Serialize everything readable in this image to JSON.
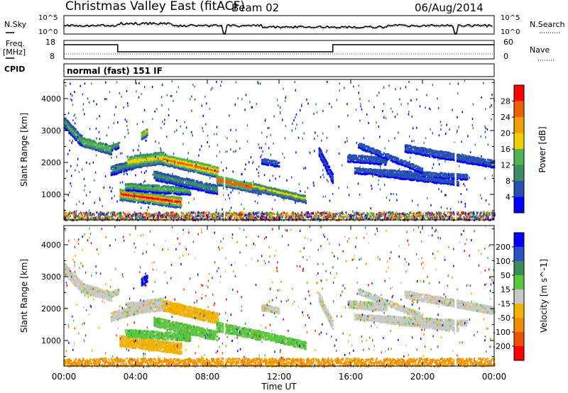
{
  "header": {
    "station": "Christmas Valley East (fitACF)",
    "beam": "Beam 02",
    "date": "06/Aug/2014"
  },
  "noise_panel": {
    "left_label": "N.Sky",
    "right_label": "N.Search",
    "left_ticks": [
      "10^5",
      "10^0"
    ],
    "right_ticks": [
      "10^5",
      "10^0"
    ]
  },
  "freq_panel": {
    "left_label_1": "Freq.",
    "left_label_2": "[MHz]",
    "right_label": "Nave",
    "left_ticks": [
      "18",
      "8"
    ],
    "right_ticks": [
      "60",
      "0"
    ]
  },
  "cpid_panel": {
    "label": "CPID",
    "text": "normal (fast) 151 IF"
  },
  "colors": {
    "power_scale": [
      "#0000ff",
      "#2850b4",
      "#3c8c64",
      "#50b450",
      "#f0d000",
      "#f0a000",
      "#f06000",
      "#ff0000"
    ],
    "velocity_scale": [
      "#0000ff",
      "#2850c8",
      "#3c8c5a",
      "#5ac83c",
      "#c8c8c8",
      "#f0b400",
      "#f08c00",
      "#f05000",
      "#ff0000"
    ]
  },
  "chart_data": [
    {
      "type": "heatmap",
      "name": "power",
      "ylabel": "Slant Range [km]",
      "ylim": [
        200,
        4600
      ],
      "xlim": [
        0,
        24
      ],
      "y_ticks": [
        1000,
        2000,
        3000,
        4000
      ],
      "colorbar": {
        "label": "Power [dB]",
        "tick_values": [
          4,
          8,
          12,
          16,
          20,
          24,
          28
        ],
        "range": [
          0,
          32
        ]
      },
      "x": [
        0.5,
        1.0,
        1.5,
        2.0,
        2.5,
        3.0,
        3.5,
        4.0,
        4.5,
        5.0,
        5.5,
        6.0,
        6.5,
        7.0,
        7.5,
        8.0,
        8.5,
        9.0,
        9.5,
        10.0,
        10.5,
        11.0,
        11.5,
        12.0,
        12.5,
        13.0,
        13.5,
        14.0
      ],
      "echo_bands": [
        {
          "start_range": [
            3200,
            2900,
            2600,
            2500,
            2500,
            2450
          ],
          "max_power": 16,
          "times": [
            0.1,
            0.6,
            1.1,
            1.6,
            2.1,
            2.6
          ]
        },
        {
          "start_range": [
            900,
            850,
            800,
            800,
            850,
            950,
            1050,
            1100
          ],
          "max_power": 30,
          "times": [
            3.0,
            3.5,
            4.0,
            4.5,
            5.0,
            5.5,
            6.0,
            6.5
          ]
        },
        {
          "start_range": [
            1500,
            1550,
            1600,
            1400,
            1300,
            1200,
            1150,
            1100
          ],
          "max_power": 26,
          "times": [
            8.5,
            9.0,
            9.5,
            10.0,
            10.5,
            11.0,
            11.5,
            12.0
          ]
        }
      ]
    },
    {
      "type": "heatmap",
      "name": "velocity",
      "ylabel": "Slant Range [km]",
      "ylim": [
        200,
        4600
      ],
      "xlim": [
        0,
        24
      ],
      "y_ticks": [
        1000,
        2000,
        3000,
        4000
      ],
      "colorbar": {
        "label": "Velocity [m s^-1]",
        "tick_values": [
          200,
          100,
          50,
          15,
          -15,
          -50,
          -100,
          -200
        ]
      }
    }
  ],
  "axes": {
    "x_ticks": [
      "00:00",
      "04:00",
      "08:00",
      "12:00",
      "16:00",
      "20:00",
      "00:00"
    ],
    "x_tick_values": [
      0,
      4,
      8,
      12,
      16,
      20,
      24
    ],
    "x_label": "Time UT"
  }
}
